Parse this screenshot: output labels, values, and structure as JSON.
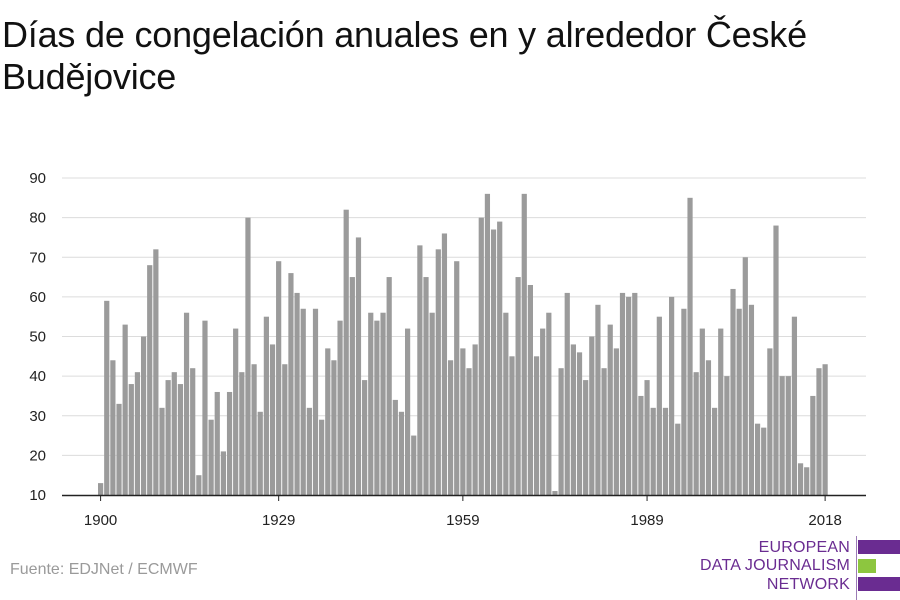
{
  "title": "Días de congelación anuales en y alrededor České Budějovice",
  "source": "Fuente: EDJNet / ECMWF",
  "logo": {
    "line1": "EUROPEAN",
    "line2": "DATA JOURNALISM",
    "line3": "NETWORK"
  },
  "colors": {
    "bar": "#9b9b9b",
    "grid": "#dcdcdc",
    "axis": "#222222",
    "logo_purple": "#6a2c91",
    "logo_green": "#8dc63f"
  },
  "chart_data": {
    "type": "bar",
    "xlabel": "",
    "ylabel": "",
    "ylim": [
      10,
      90
    ],
    "xlim": [
      1900,
      2018
    ],
    "yticks": [
      10,
      20,
      30,
      40,
      50,
      60,
      70,
      80,
      90
    ],
    "xticks": [
      1900,
      1929,
      1959,
      1989,
      2018
    ],
    "grid": true,
    "x": [
      1900,
      1901,
      1902,
      1903,
      1904,
      1905,
      1906,
      1907,
      1908,
      1909,
      1910,
      1911,
      1912,
      1913,
      1914,
      1915,
      1916,
      1917,
      1918,
      1919,
      1920,
      1921,
      1922,
      1923,
      1924,
      1925,
      1926,
      1927,
      1928,
      1929,
      1930,
      1931,
      1932,
      1933,
      1934,
      1935,
      1936,
      1937,
      1938,
      1939,
      1940,
      1941,
      1942,
      1943,
      1944,
      1945,
      1946,
      1947,
      1948,
      1949,
      1950,
      1951,
      1952,
      1953,
      1954,
      1955,
      1956,
      1957,
      1958,
      1959,
      1960,
      1961,
      1962,
      1963,
      1964,
      1965,
      1966,
      1967,
      1968,
      1969,
      1970,
      1971,
      1972,
      1973,
      1974,
      1975,
      1976,
      1977,
      1978,
      1979,
      1980,
      1981,
      1982,
      1983,
      1984,
      1985,
      1986,
      1987,
      1988,
      1989,
      1990,
      1991,
      1992,
      1993,
      1994,
      1995,
      1996,
      1997,
      1998,
      1999,
      2000,
      2001,
      2002,
      2003,
      2004,
      2005,
      2006,
      2007,
      2008,
      2009,
      2010,
      2011,
      2012,
      2013,
      2014,
      2015,
      2016,
      2017,
      2018
    ],
    "values": [
      13,
      59,
      44,
      33,
      53,
      38,
      41,
      50,
      68,
      72,
      32,
      39,
      41,
      38,
      56,
      42,
      15,
      54,
      29,
      36,
      21,
      36,
      52,
      41,
      80,
      43,
      31,
      55,
      48,
      69,
      43,
      66,
      61,
      57,
      32,
      57,
      29,
      47,
      44,
      54,
      82,
      65,
      75,
      39,
      56,
      54,
      56,
      65,
      34,
      31,
      52,
      25,
      73,
      65,
      56,
      72,
      76,
      44,
      69,
      47,
      42,
      48,
      80,
      86,
      77,
      79,
      56,
      45,
      65,
      86,
      63,
      45,
      52,
      56,
      11,
      42,
      61,
      48,
      46,
      39,
      50,
      58,
      42,
      53,
      47,
      61,
      60,
      61,
      35,
      39,
      32,
      55,
      32,
      60,
      28,
      57,
      85,
      41,
      52,
      44,
      32,
      52,
      40,
      62,
      57,
      70,
      58,
      28,
      27,
      47,
      78,
      40,
      40,
      55,
      18,
      17,
      35,
      42,
      43
    ]
  }
}
